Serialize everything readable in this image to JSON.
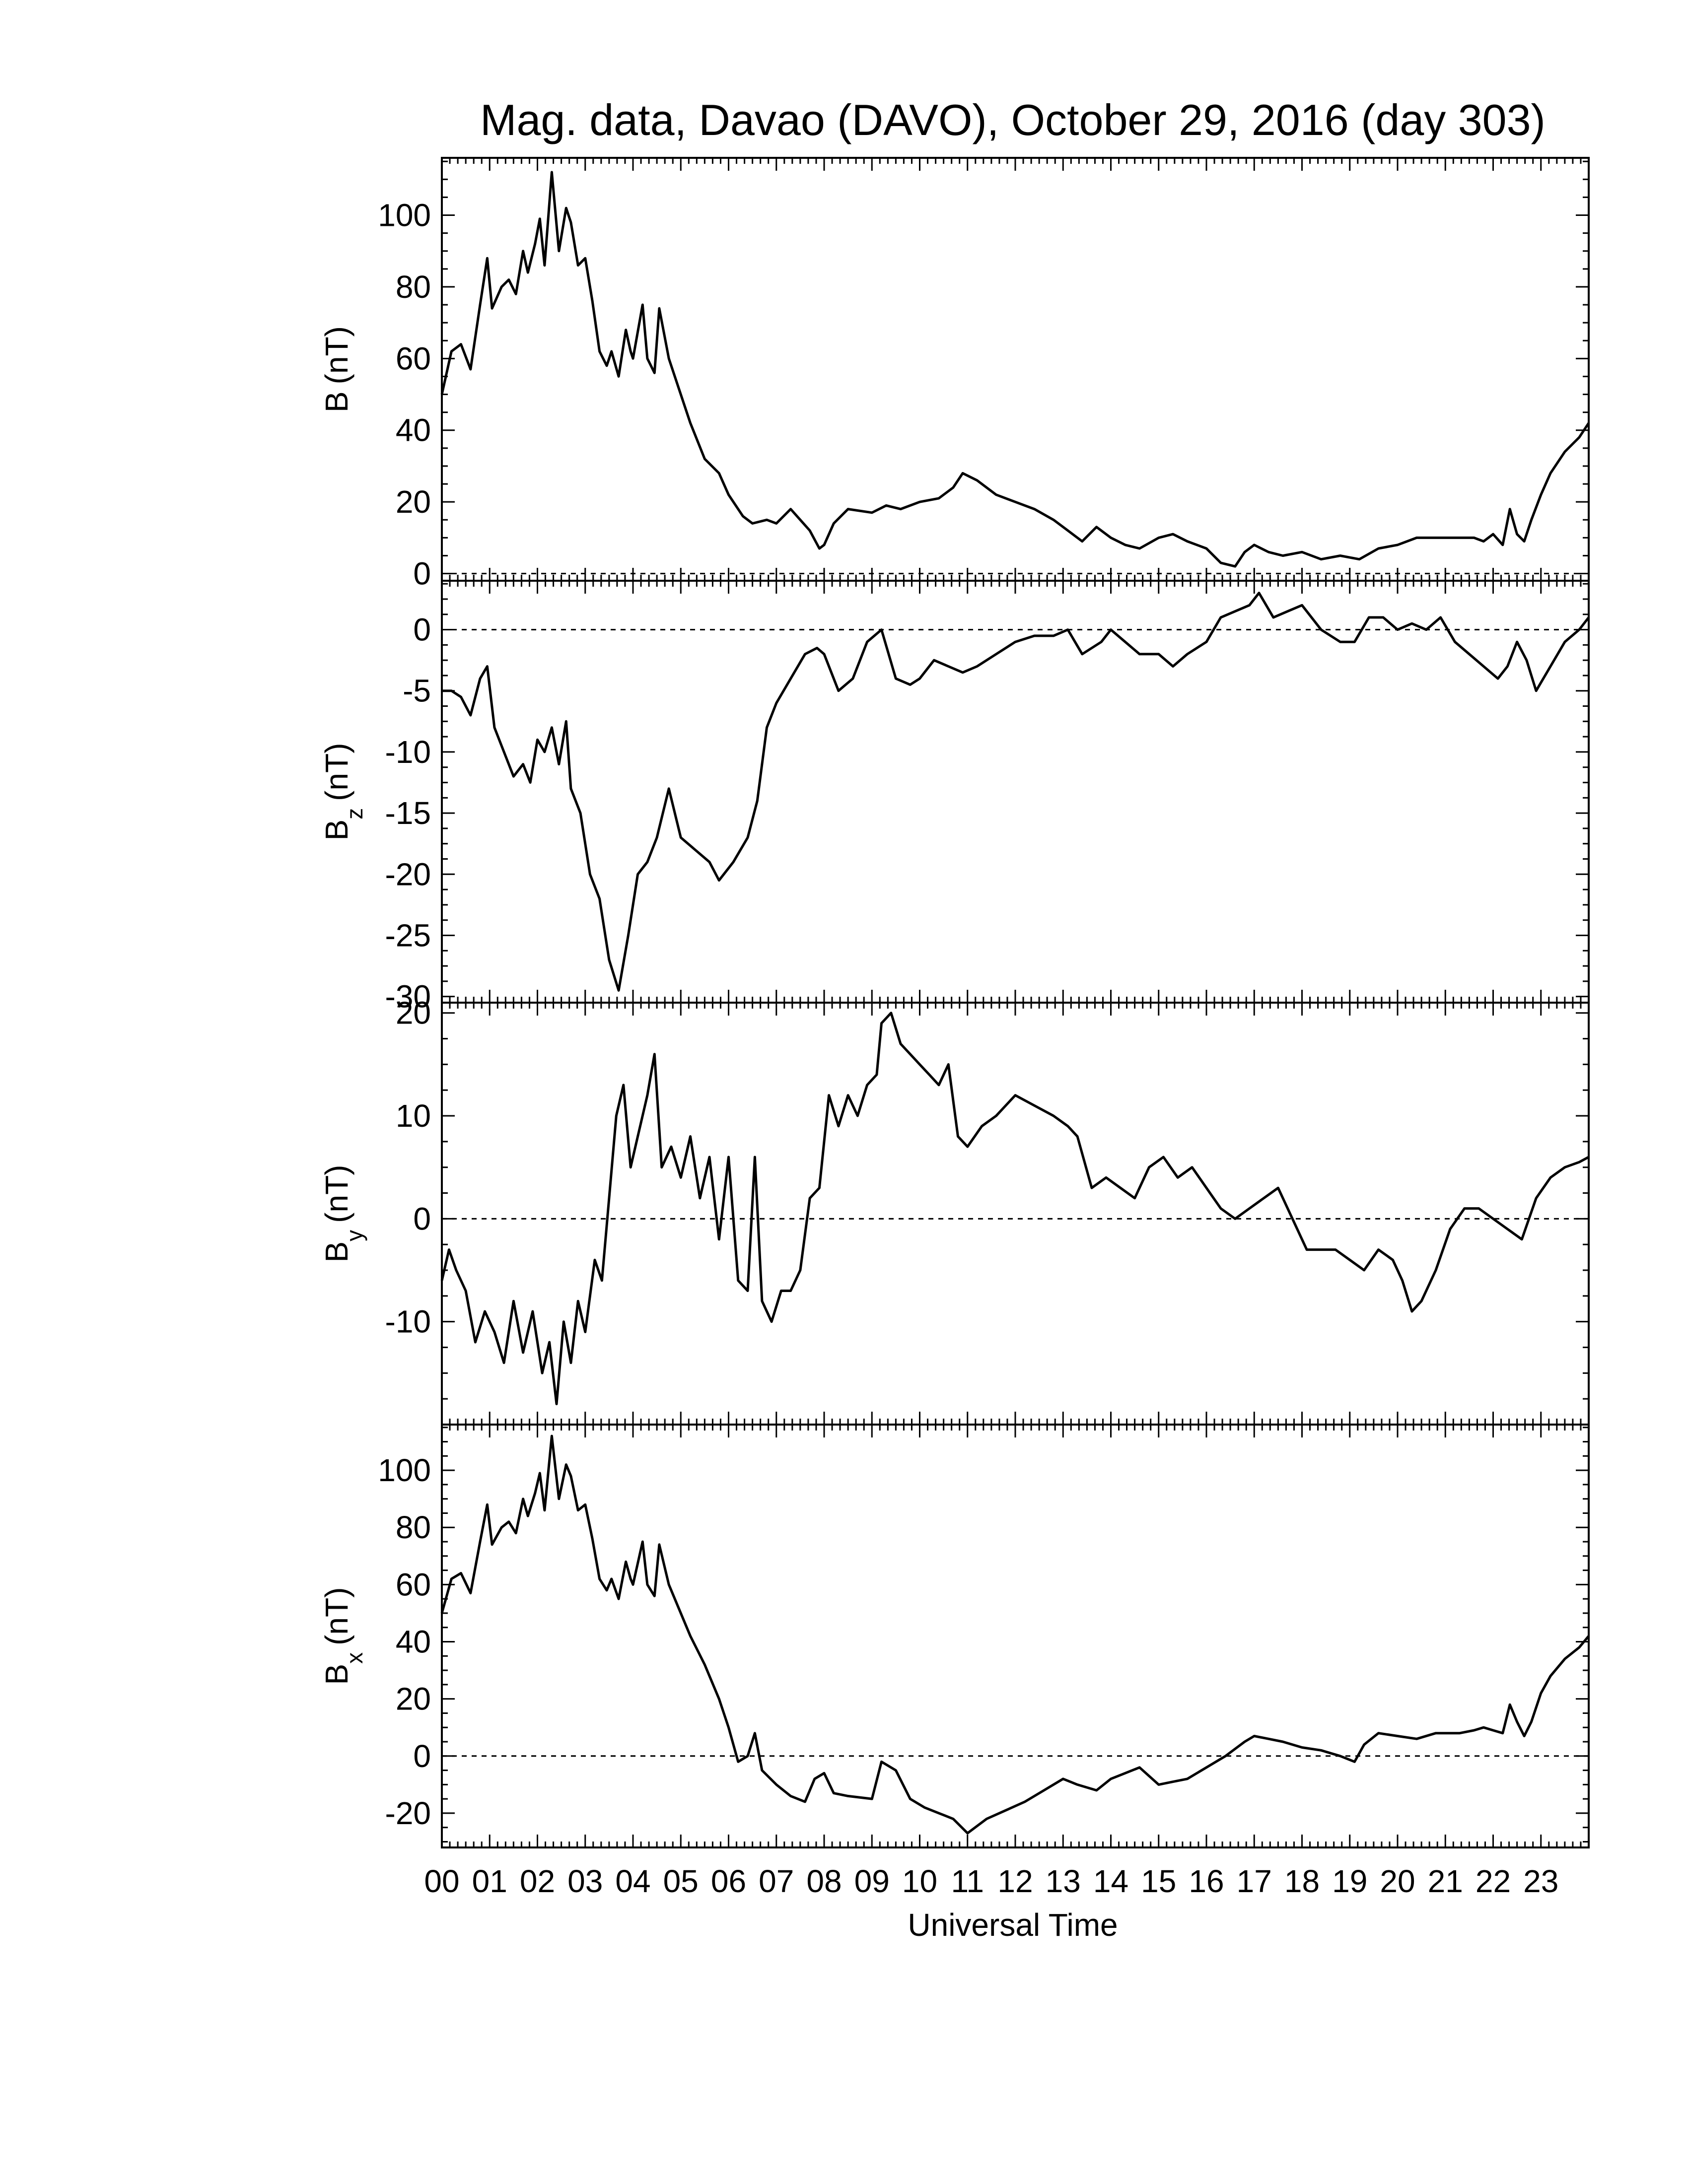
{
  "figure": {
    "title": "Mag. data, Davao (DAVO), October 29, 2016 (day 303)",
    "xlabel": "Universal Time"
  },
  "chart_data": {
    "type": "line",
    "x_unit": "hour",
    "x_ticks": [
      "00",
      "01",
      "02",
      "03",
      "04",
      "05",
      "06",
      "07",
      "08",
      "09",
      "10",
      "11",
      "12",
      "13",
      "14",
      "15",
      "16",
      "17",
      "18",
      "19",
      "20",
      "21",
      "22",
      "23"
    ],
    "xlim": [
      0,
      24
    ],
    "panels": [
      {
        "ylabel_main": "B",
        "ylabel_sub": "",
        "ylabel_unit": "(nT)",
        "ylim": [
          -2,
          116
        ],
        "yticks": [
          0,
          20,
          40,
          60,
          80,
          100
        ],
        "zero_line": true,
        "x": [
          0,
          0.2,
          0.4,
          0.6,
          0.8,
          0.95,
          1.05,
          1.25,
          1.4,
          1.55,
          1.7,
          1.8,
          1.95,
          2.05,
          2.15,
          2.3,
          2.45,
          2.6,
          2.7,
          2.75,
          2.85,
          3.0,
          3.15,
          3.3,
          3.45,
          3.55,
          3.7,
          3.85,
          3.95,
          4.0,
          4.2,
          4.3,
          4.45,
          4.55,
          4.75,
          4.95,
          5.2,
          5.5,
          5.8,
          6.0,
          6.3,
          6.5,
          6.8,
          7.0,
          7.3,
          7.5,
          7.7,
          7.9,
          8.0,
          8.2,
          8.5,
          9.0,
          9.3,
          9.6,
          10.0,
          10.4,
          10.7,
          10.9,
          11.2,
          11.6,
          12.0,
          12.4,
          12.8,
          13.1,
          13.4,
          13.7,
          14.0,
          14.3,
          14.6,
          15.0,
          15.3,
          15.6,
          16.0,
          16.3,
          16.6,
          16.8,
          17.0,
          17.3,
          17.6,
          18.0,
          18.4,
          18.8,
          19.2,
          19.6,
          20.0,
          20.4,
          20.8,
          21.3,
          21.6,
          21.8,
          22.0,
          22.2,
          22.35,
          22.5,
          22.65,
          22.8,
          23.0,
          23.2,
          23.5,
          23.8,
          24.0
        ],
        "values": [
          50,
          62,
          64,
          57,
          75,
          88,
          74,
          80,
          82,
          78,
          90,
          84,
          92,
          99,
          86,
          112,
          90,
          102,
          98,
          94,
          86,
          88,
          76,
          62,
          58,
          62,
          55,
          68,
          62,
          60,
          75,
          60,
          56,
          74,
          60,
          52,
          42,
          32,
          28,
          22,
          16,
          14,
          15,
          14,
          18,
          15,
          12,
          7,
          8,
          14,
          18,
          17,
          19,
          18,
          20,
          21,
          24,
          28,
          26,
          22,
          20,
          18,
          15,
          12,
          9,
          13,
          10,
          8,
          7,
          10,
          11,
          9,
          7,
          3,
          2,
          6,
          8,
          6,
          5,
          6,
          4,
          5,
          4,
          7,
          8,
          10,
          10,
          10,
          10,
          9,
          11,
          8,
          18,
          11,
          9,
          15,
          22,
          28,
          34,
          38,
          42
        ]
      },
      {
        "ylabel_main": "B",
        "ylabel_sub": "z",
        "ylabel_unit": "(nT)",
        "ylim": [
          -30.5,
          4
        ],
        "yticks": [
          0,
          -5,
          -10,
          -15,
          -20,
          -25,
          -30
        ],
        "zero_line": true,
        "x": [
          0,
          0.2,
          0.4,
          0.6,
          0.8,
          0.95,
          1.1,
          1.3,
          1.5,
          1.7,
          1.85,
          2.0,
          2.15,
          2.3,
          2.45,
          2.6,
          2.7,
          2.9,
          3.1,
          3.3,
          3.5,
          3.7,
          3.9,
          4.1,
          4.3,
          4.5,
          4.75,
          5.0,
          5.3,
          5.6,
          5.8,
          6.1,
          6.4,
          6.6,
          6.8,
          7.0,
          7.3,
          7.6,
          7.85,
          8.0,
          8.3,
          8.6,
          8.9,
          9.2,
          9.5,
          9.8,
          10.0,
          10.3,
          10.6,
          10.9,
          11.2,
          11.6,
          12.0,
          12.4,
          12.8,
          13.1,
          13.4,
          13.8,
          14.0,
          14.3,
          14.6,
          15.0,
          15.3,
          15.6,
          16.0,
          16.3,
          16.6,
          16.9,
          17.1,
          17.4,
          17.7,
          18.0,
          18.4,
          18.8,
          19.1,
          19.4,
          19.7,
          20.0,
          20.3,
          20.6,
          20.9,
          21.2,
          21.5,
          21.8,
          22.1,
          22.3,
          22.5,
          22.7,
          22.9,
          23.2,
          23.5,
          23.8,
          24.0
        ],
        "values": [
          -5,
          -5,
          -5.5,
          -7,
          -4,
          -3,
          -8,
          -10,
          -12,
          -11,
          -12.5,
          -9,
          -10,
          -8,
          -11,
          -7.5,
          -13,
          -15,
          -20,
          -22,
          -27,
          -29.5,
          -25,
          -20,
          -19,
          -17,
          -13,
          -17,
          -18,
          -19,
          -20.5,
          -19,
          -17,
          -14,
          -8,
          -6,
          -4,
          -2,
          -1.5,
          -2,
          -5,
          -4,
          -1,
          0,
          -4,
          -4.5,
          -4,
          -2.5,
          -3,
          -3.5,
          -3,
          -2,
          -1,
          -0.5,
          -0.5,
          0,
          -2,
          -1,
          0,
          -1,
          -2,
          -2,
          -3,
          -2,
          -1,
          1,
          1.5,
          2,
          3,
          1,
          1.5,
          2,
          0,
          -1,
          -1,
          1,
          1,
          0,
          0.5,
          0,
          1,
          -1,
          -2,
          -3,
          -4,
          -3,
          -1,
          -2.5,
          -5,
          -3,
          -1,
          0,
          1
        ]
      },
      {
        "ylabel_main": "B",
        "ylabel_sub": "y",
        "ylabel_unit": "(nT)",
        "ylim": [
          -20,
          21
        ],
        "yticks": [
          20,
          10,
          0,
          -10
        ],
        "zero_line": true,
        "x": [
          0,
          0.15,
          0.3,
          0.5,
          0.7,
          0.9,
          1.1,
          1.3,
          1.5,
          1.7,
          1.9,
          2.1,
          2.25,
          2.4,
          2.55,
          2.7,
          2.85,
          3.0,
          3.2,
          3.35,
          3.5,
          3.65,
          3.8,
          3.95,
          4.1,
          4.3,
          4.45,
          4.6,
          4.8,
          5.0,
          5.2,
          5.4,
          5.6,
          5.8,
          6.0,
          6.2,
          6.4,
          6.55,
          6.7,
          6.9,
          7.1,
          7.3,
          7.5,
          7.7,
          7.9,
          8.1,
          8.3,
          8.5,
          8.7,
          8.9,
          9.1,
          9.2,
          9.4,
          9.6,
          9.8,
          10.0,
          10.2,
          10.4,
          10.6,
          10.8,
          11.0,
          11.3,
          11.6,
          12.0,
          12.4,
          12.8,
          13.1,
          13.3,
          13.6,
          13.9,
          14.2,
          14.5,
          14.8,
          15.1,
          15.4,
          15.7,
          16.0,
          16.3,
          16.6,
          16.9,
          17.2,
          17.5,
          17.8,
          18.1,
          18.4,
          18.7,
          19.0,
          19.3,
          19.6,
          19.9,
          20.1,
          20.3,
          20.5,
          20.8,
          21.1,
          21.4,
          21.7,
          22.0,
          22.3,
          22.6,
          22.9,
          23.2,
          23.5,
          23.8,
          24.0
        ],
        "values": [
          -6,
          -3,
          -5,
          -7,
          -12,
          -9,
          -11,
          -14,
          -8,
          -13,
          -9,
          -15,
          -12,
          -18,
          -10,
          -14,
          -8,
          -11,
          -4,
          -6,
          2,
          10,
          13,
          5,
          8,
          12,
          16,
          5,
          7,
          4,
          8,
          2,
          6,
          -2,
          6,
          -6,
          -7,
          6,
          -8,
          -10,
          -7,
          -7,
          -5,
          2,
          3,
          12,
          9,
          12,
          10,
          13,
          14,
          19,
          20,
          17,
          16,
          15,
          14,
          13,
          15,
          8,
          7,
          9,
          10,
          12,
          11,
          10,
          9,
          8,
          3,
          4,
          3,
          2,
          5,
          6,
          4,
          5,
          3,
          1,
          0,
          1,
          2,
          3,
          0,
          -3,
          -3,
          -3,
          -4,
          -5,
          -3,
          -4,
          -6,
          -9,
          -8,
          -5,
          -1,
          1,
          1,
          0,
          -1,
          -2,
          2,
          4,
          5,
          5.5,
          6
        ]
      },
      {
        "ylabel_main": "B",
        "ylabel_sub": "x",
        "ylabel_unit": "(nT)",
        "ylim": [
          -32,
          116
        ],
        "yticks": [
          100,
          80,
          60,
          40,
          20,
          0,
          -20
        ],
        "zero_line": true,
        "x": [
          0,
          0.2,
          0.4,
          0.6,
          0.8,
          0.95,
          1.05,
          1.25,
          1.4,
          1.55,
          1.7,
          1.8,
          1.95,
          2.05,
          2.15,
          2.3,
          2.45,
          2.6,
          2.7,
          2.75,
          2.85,
          3.0,
          3.15,
          3.3,
          3.45,
          3.55,
          3.7,
          3.85,
          3.95,
          4.0,
          4.2,
          4.3,
          4.45,
          4.55,
          4.75,
          4.95,
          5.2,
          5.5,
          5.8,
          6.0,
          6.2,
          6.4,
          6.55,
          6.7,
          7.0,
          7.3,
          7.6,
          7.8,
          8.0,
          8.2,
          8.5,
          9.0,
          9.2,
          9.5,
          9.8,
          10.1,
          10.4,
          10.7,
          11.0,
          11.4,
          11.8,
          12.2,
          12.6,
          13.0,
          13.3,
          13.7,
          14.0,
          14.3,
          14.6,
          15.0,
          15.3,
          15.6,
          16.0,
          16.4,
          16.8,
          17.0,
          17.3,
          17.6,
          18.0,
          18.4,
          18.8,
          19.1,
          19.3,
          19.6,
          20.0,
          20.4,
          20.8,
          21.3,
          21.6,
          21.8,
          22.0,
          22.2,
          22.35,
          22.5,
          22.65,
          22.8,
          23.0,
          23.2,
          23.5,
          23.8,
          24.0
        ],
        "values": [
          50,
          62,
          64,
          57,
          75,
          88,
          74,
          80,
          82,
          78,
          90,
          84,
          92,
          99,
          86,
          112,
          90,
          102,
          98,
          94,
          86,
          88,
          76,
          62,
          58,
          62,
          55,
          68,
          62,
          60,
          75,
          60,
          56,
          74,
          60,
          52,
          42,
          32,
          20,
          10,
          -2,
          0,
          8,
          -5,
          -10,
          -14,
          -16,
          -8,
          -6,
          -13,
          -14,
          -15,
          -2,
          -5,
          -15,
          -18,
          -20,
          -22,
          -27,
          -22,
          -19,
          -16,
          -12,
          -8,
          -10,
          -12,
          -8,
          -6,
          -4,
          -10,
          -9,
          -8,
          -4,
          0,
          5,
          7,
          6,
          5,
          3,
          2,
          0,
          -2,
          4,
          8,
          7,
          6,
          8,
          8,
          9,
          10,
          9,
          8,
          18,
          12,
          7,
          12,
          22,
          28,
          34,
          38,
          42
        ]
      }
    ]
  }
}
